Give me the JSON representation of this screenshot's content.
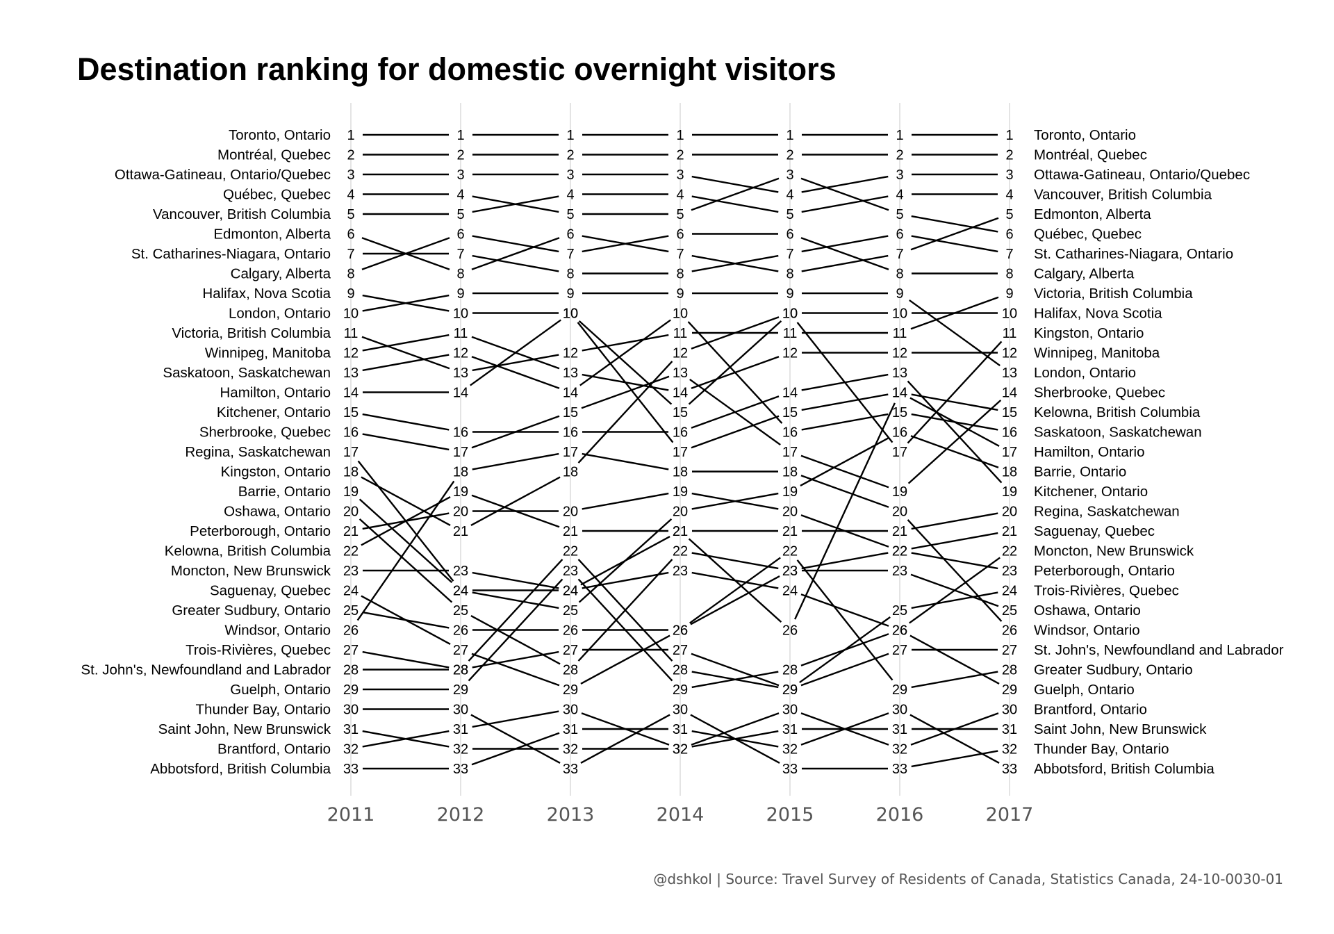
{
  "chart_data": {
    "type": "line",
    "title": "Destination ranking for domestic overnight visitors",
    "caption": "@dshkol | Source: Travel Survey of Residents of Canada, Statistics Canada, 24-10-0030-01",
    "x": [
      "2011",
      "2012",
      "2013",
      "2014",
      "2015",
      "2016",
      "2017"
    ],
    "y_reversed": true,
    "ylim": [
      1,
      33
    ],
    "grid": "vertical",
    "series": [
      {
        "name": "Toronto, Ontario",
        "values": [
          1,
          1,
          1,
          1,
          1,
          1,
          1
        ]
      },
      {
        "name": "Montréal, Quebec",
        "values": [
          2,
          2,
          2,
          2,
          2,
          2,
          2
        ]
      },
      {
        "name": "Ottawa-Gatineau, Ontario/Quebec",
        "values": [
          3,
          3,
          3,
          3,
          4,
          3,
          3
        ]
      },
      {
        "name": "Québec, Quebec",
        "values": [
          4,
          4,
          5,
          5,
          3,
          5,
          6
        ]
      },
      {
        "name": "Vancouver, British Columbia",
        "values": [
          5,
          5,
          4,
          4,
          5,
          4,
          4
        ]
      },
      {
        "name": "Edmonton, Alberta",
        "values": [
          6,
          8,
          6,
          7,
          8,
          7,
          5
        ]
      },
      {
        "name": "St. Catharines-Niagara, Ontario",
        "values": [
          7,
          7,
          8,
          8,
          7,
          6,
          7
        ]
      },
      {
        "name": "Calgary, Alberta",
        "values": [
          8,
          6,
          7,
          6,
          6,
          8,
          8
        ]
      },
      {
        "name": "Halifax, Nova Scotia",
        "values": [
          9,
          10,
          10,
          15,
          10,
          10,
          10
        ]
      },
      {
        "name": "London, Ontario",
        "values": [
          10,
          9,
          9,
          9,
          9,
          9,
          13
        ]
      },
      {
        "name": "Victoria, British Columbia",
        "values": [
          11,
          13,
          12,
          11,
          11,
          11,
          9
        ]
      },
      {
        "name": "Winnipeg, Manitoba",
        "values": [
          12,
          11,
          13,
          14,
          12,
          12,
          12
        ]
      },
      {
        "name": "Saskatoon, Saskatchewan",
        "values": [
          13,
          12,
          14,
          10,
          16,
          15,
          16
        ]
      },
      {
        "name": "Hamilton, Ontario",
        "values": [
          14,
          14,
          10,
          17,
          15,
          14,
          17
        ]
      },
      {
        "name": "Kitchener, Ontario",
        "values": [
          15,
          16,
          16,
          16,
          14,
          13,
          19
        ]
      },
      {
        "name": "Sherbrooke, Quebec",
        "values": [
          16,
          17,
          15,
          13,
          17,
          19,
          14
        ]
      },
      {
        "name": "Regina, Saskatchewan",
        "values": [
          17,
          24,
          24,
          21,
          21,
          21,
          20
        ]
      },
      {
        "name": "Kingston, Ontario",
        "values": [
          18,
          21,
          18,
          12,
          10,
          17,
          11
        ]
      },
      {
        "name": "Barrie, Ontario",
        "values": [
          19,
          24,
          25,
          20,
          19,
          16,
          18
        ]
      },
      {
        "name": "Oshawa, Ontario",
        "values": [
          20,
          25,
          28,
          22,
          23,
          23,
          25
        ]
      },
      {
        "name": "Peterborough, Ontario",
        "values": [
          21,
          20,
          20,
          19,
          20,
          22,
          23
        ]
      },
      {
        "name": "Kelowna, British Columbia",
        "values": [
          22,
          19,
          21,
          21,
          26,
          14,
          15
        ]
      },
      {
        "name": "Moncton, New Brunswick",
        "values": [
          23,
          23,
          24,
          23,
          24,
          26,
          22
        ]
      },
      {
        "name": "Saguenay, Quebec",
        "values": [
          24,
          27,
          29,
          26,
          23,
          22,
          21
        ]
      },
      {
        "name": "Greater Sudbury, Ontario",
        "values": [
          25,
          26,
          26,
          26,
          22,
          29,
          28
        ]
      },
      {
        "name": "Windsor, Ontario",
        "values": [
          26,
          18,
          17,
          18,
          18,
          20,
          26
        ]
      },
      {
        "name": "Trois-Rivières, Quebec",
        "values": [
          27,
          28,
          22,
          28,
          29,
          25,
          24
        ]
      },
      {
        "name": "St. John's, Newfoundland and Labrador",
        "values": [
          28,
          28,
          27,
          27,
          29,
          27,
          27
        ]
      },
      {
        "name": "Guelph, Ontario",
        "values": [
          29,
          29,
          23,
          29,
          28,
          26,
          29
        ]
      },
      {
        "name": "Thunder Bay, Ontario",
        "values": [
          30,
          30,
          33,
          30,
          33,
          33,
          32
        ]
      },
      {
        "name": "Saint John, New Brunswick",
        "values": [
          31,
          32,
          32,
          32,
          31,
          31,
          31
        ]
      },
      {
        "name": "Brantford, Ontario",
        "values": [
          32,
          31,
          30,
          32,
          30,
          32,
          30
        ]
      },
      {
        "name": "Abbotsford, British Columbia",
        "values": [
          33,
          33,
          31,
          31,
          32,
          30,
          33
        ]
      }
    ],
    "left_labels": [
      "Toronto, Ontario",
      "Montréal, Quebec",
      "Ottawa-Gatineau, Ontario/Quebec",
      "Québec, Quebec",
      "Vancouver, British Columbia",
      "Edmonton, Alberta",
      "St. Catharines-Niagara, Ontario",
      "Calgary, Alberta",
      "Halifax, Nova Scotia",
      "London, Ontario",
      "Victoria, British Columbia",
      "Winnipeg, Manitoba",
      "Saskatoon, Saskatchewan",
      "Hamilton, Ontario",
      "Kitchener, Ontario",
      "Sherbrooke, Quebec",
      "Regina, Saskatchewan",
      "Kingston, Ontario",
      "Barrie, Ontario",
      "Oshawa, Ontario",
      "Peterborough, Ontario",
      "Kelowna, British Columbia",
      "Moncton, New Brunswick",
      "Saguenay, Quebec",
      "Greater Sudbury, Ontario",
      "Windsor, Ontario",
      "Trois-Rivières, Quebec",
      "St. John's, Newfoundland and Labrador",
      "Guelph, Ontario",
      "Thunder Bay, Ontario",
      "Saint John, New Brunswick",
      "Brantford, Ontario",
      "Abbotsford, British Columbia"
    ],
    "right_labels": [
      "Toronto, Ontario",
      "Montréal, Quebec",
      "Ottawa-Gatineau, Ontario/Quebec",
      "Vancouver, British Columbia",
      "Edmonton, Alberta",
      "Québec, Quebec",
      "St. Catharines-Niagara, Ontario",
      "Calgary, Alberta",
      "Victoria, British Columbia",
      "Halifax, Nova Scotia",
      "Kingston, Ontario",
      "Winnipeg, Manitoba",
      "London, Ontario",
      "Sherbrooke, Quebec",
      "Kelowna, British Columbia",
      "Saskatoon, Saskatchewan",
      "Hamilton, Ontario",
      "Barrie, Ontario",
      "Kitchener, Ontario",
      "Regina, Saskatchewan",
      "Saguenay, Quebec",
      "Moncton, New Brunswick",
      "Peterborough, Ontario",
      "Trois-Rivières, Quebec",
      "Oshawa, Ontario",
      "Windsor, Ontario",
      "St. John's, Newfoundland and Labrador",
      "Greater Sudbury, Ontario",
      "Guelph, Ontario",
      "Brantford, Ontario",
      "Saint John, New Brunswick",
      "Thunder Bay, Ontario",
      "Abbotsford, British Columbia"
    ]
  }
}
